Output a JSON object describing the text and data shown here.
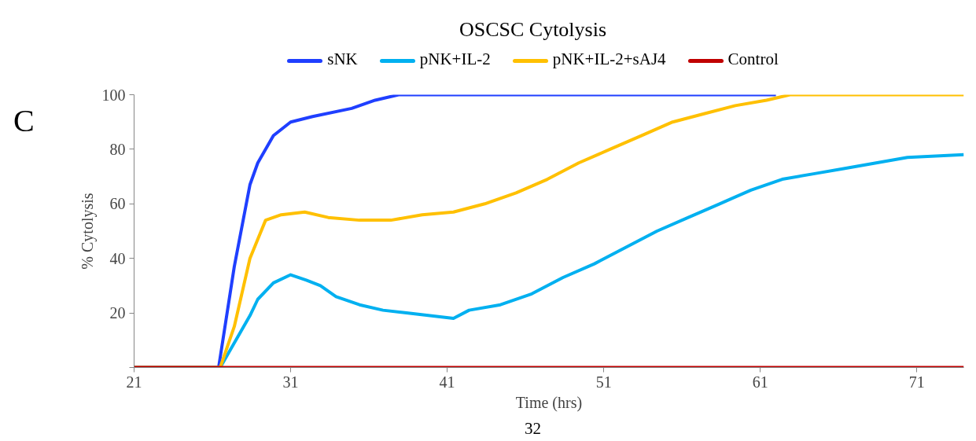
{
  "chart_data": {
    "type": "line",
    "title": "OSCSC Cytolysis",
    "xlabel": "Time (hrs)",
    "ylabel": "% Cytolysis",
    "annotations": [
      "C",
      "32"
    ],
    "xlim": [
      21,
      74
    ],
    "xticks": [
      21,
      31,
      41,
      51,
      61,
      71
    ],
    "ylim": [
      0,
      100
    ],
    "yticks": [
      {
        "value": 0,
        "label": null
      },
      20,
      40,
      60,
      80,
      100
    ],
    "grid": false,
    "legend": "top",
    "marker": "none",
    "line_style": "solid",
    "series": [
      {
        "name": "sNK",
        "color": "#1f3fff",
        "x": [
          21,
          26.4,
          27.4,
          28.4,
          28.9,
          29.9,
          31,
          32.4,
          34.9,
          36.4,
          37.9,
          50,
          62
        ],
        "values": [
          0,
          0,
          37,
          67,
          75,
          85,
          90,
          92,
          95,
          98,
          100,
          100,
          100
        ]
      },
      {
        "name": "pNK+IL-2",
        "color": "#00b0f0",
        "x": [
          21,
          26.5,
          27.4,
          28.4,
          28.9,
          29.9,
          31,
          32,
          32.9,
          33.9,
          35.4,
          36.9,
          38.4,
          39.9,
          41.4,
          42.4,
          44.4,
          46.4,
          48.4,
          50.4,
          52.4,
          54.4,
          56.4,
          58.4,
          60.4,
          62.4,
          64.4,
          66.4,
          68.4,
          70.4,
          74
        ],
        "values": [
          0,
          0,
          9,
          19,
          25,
          31,
          34,
          32,
          30,
          26,
          23,
          21,
          20,
          19,
          18,
          21,
          23,
          27,
          33,
          38,
          44,
          50,
          55,
          60,
          65,
          69,
          71,
          73,
          75,
          77,
          78
        ]
      },
      {
        "name": "pNK+IL-2+sAJ4",
        "color": "#ffc000",
        "x": [
          21,
          26.5,
          27.4,
          28.4,
          29.4,
          30.4,
          31.9,
          33.4,
          35.4,
          37.4,
          39.4,
          41.4,
          43.4,
          45.4,
          47.4,
          49.4,
          51.4,
          53.4,
          55.4,
          57.4,
          59.4,
          61.4,
          62.9,
          74
        ],
        "values": [
          0,
          0,
          15,
          40,
          54,
          56,
          57,
          55,
          54,
          54,
          56,
          57,
          60,
          64,
          69,
          75,
          80,
          85,
          90,
          93,
          96,
          98,
          100,
          100
        ]
      },
      {
        "name": "Control",
        "color": "#c00000",
        "x": [
          21,
          74
        ],
        "values": [
          0,
          0
        ]
      }
    ]
  }
}
